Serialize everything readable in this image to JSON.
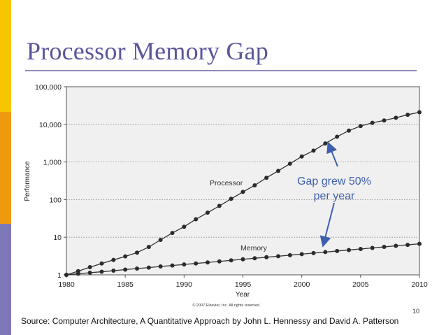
{
  "slide": {
    "title": "Processor Memory Gap",
    "page_number": "10",
    "source": "Source: Computer Architecture, A Quantitative Approach by John L. Hennessy and David A. Patterson",
    "copyright": "© 2007 Elsevier, Inc. All rights reserved.",
    "annotation": [
      "Gap grew 50%",
      "per year"
    ]
  },
  "colors": {
    "title": "#5a569b",
    "annotation": "#3f5fae",
    "marker": "#2b2b2b",
    "plot_background": "#f0f0f0",
    "stripe_yellow": "#f7c600",
    "stripe_orange": "#ee9a0f",
    "stripe_purple": "#7f78b8"
  },
  "chart_data": {
    "type": "line",
    "title": "",
    "xlabel": "Year",
    "ylabel": "Performance",
    "yscale": "log",
    "xlim": [
      1980,
      2010
    ],
    "ylim": [
      1,
      100000
    ],
    "x_ticks": [
      1980,
      1985,
      1990,
      1995,
      2000,
      2005,
      2010
    ],
    "x_tick_labels": [
      "1980",
      "1985",
      "1990",
      "1995",
      "2000",
      "2005",
      "2010"
    ],
    "y_ticks": [
      1,
      10,
      100,
      1000,
      10000,
      100000
    ],
    "y_tick_labels": [
      "1",
      "10",
      "100",
      "1,000",
      "10,000",
      "100,000"
    ],
    "grid": "horizontal dotted",
    "series": [
      {
        "name": "Processor",
        "x": [
          1980,
          1981,
          1982,
          1983,
          1984,
          1985,
          1986,
          1987,
          1988,
          1989,
          1990,
          1991,
          1992,
          1993,
          1994,
          1995,
          1996,
          1997,
          1998,
          1999,
          2000,
          2001,
          2002,
          2003,
          2004,
          2005,
          2006,
          2007,
          2008,
          2009,
          2010
        ],
        "values": [
          1,
          1.25,
          1.6,
          2,
          2.5,
          3.1,
          3.9,
          5.5,
          8.5,
          13,
          19,
          30,
          45,
          68,
          105,
          160,
          240,
          380,
          580,
          900,
          1400,
          2000,
          3100,
          4700,
          6800,
          9000,
          11000,
          12700,
          15000,
          18000,
          21000
        ]
      },
      {
        "name": "Memory",
        "x": [
          1980,
          1981,
          1982,
          1983,
          1984,
          1985,
          1986,
          1987,
          1988,
          1989,
          1990,
          1991,
          1992,
          1993,
          1994,
          1995,
          1996,
          1997,
          1998,
          1999,
          2000,
          2001,
          2002,
          2003,
          2004,
          2005,
          2006,
          2007,
          2008,
          2009,
          2010
        ],
        "values": [
          1,
          1.07,
          1.14,
          1.21,
          1.29,
          1.38,
          1.47,
          1.56,
          1.67,
          1.77,
          1.89,
          2.01,
          2.14,
          2.28,
          2.43,
          2.59,
          2.76,
          2.94,
          3.13,
          3.34,
          3.55,
          3.79,
          4.03,
          4.3,
          4.58,
          4.88,
          5.2,
          5.53,
          5.9,
          6.28,
          6.69
        ]
      }
    ],
    "annotations": [
      {
        "text": "Gap grew 50% per year",
        "arrows_to": [
          {
            "x": 2003,
            "y": 4800
          },
          {
            "x": 2002,
            "y": 4.2
          }
        ]
      }
    ]
  }
}
